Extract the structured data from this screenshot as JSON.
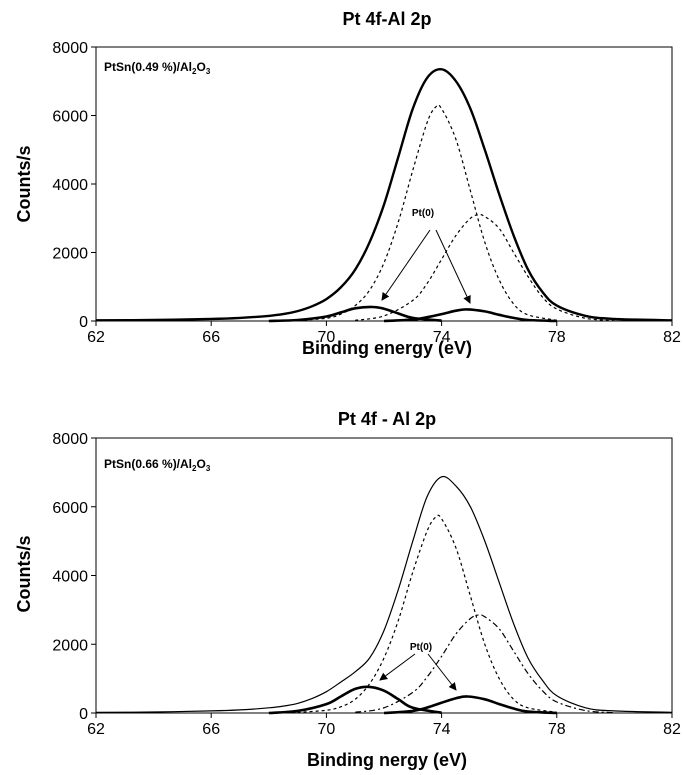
{
  "chart_data": [
    {
      "type": "line",
      "title": "Pt 4f-Al 2p",
      "xlabel": "Binding energy (eV)",
      "ylabel": "Counts/s",
      "sample_label": {
        "prefix": "PtSn(0.49 %)/Al",
        "sub1": "2",
        "mid": "O",
        "sub2": "3"
      },
      "annotation": "Pt(0)",
      "xlim": [
        62,
        82
      ],
      "ylim": [
        0,
        8000
      ],
      "xticks": [
        62,
        66,
        70,
        74,
        78,
        82
      ],
      "yticks": [
        0,
        2000,
        4000,
        6000,
        8000
      ],
      "grid": false,
      "series": [
        {
          "style": "envelope",
          "x": [
            62,
            64,
            66,
            67,
            68,
            68.5,
            69,
            69.5,
            70,
            70.5,
            71,
            71.5,
            72,
            72.5,
            73,
            73.5,
            74,
            74.5,
            75,
            75.5,
            76,
            76.5,
            77,
            77.5,
            78,
            79,
            80,
            82
          ],
          "y": [
            20,
            30,
            60,
            90,
            150,
            200,
            290,
            430,
            640,
            980,
            1500,
            2300,
            3400,
            4800,
            6200,
            7100,
            7350,
            7000,
            6200,
            5000,
            3700,
            2500,
            1500,
            850,
            450,
            150,
            60,
            20
          ]
        },
        {
          "style": "dotted-peak-1",
          "x": [
            69,
            70,
            70.5,
            71,
            71.5,
            72,
            72.5,
            73,
            73.5,
            73.8,
            74,
            74.5,
            75,
            75.5,
            76,
            76.5,
            77,
            78
          ],
          "y": [
            20,
            80,
            200,
            450,
            900,
            1700,
            2900,
            4400,
            5800,
            6250,
            6200,
            5300,
            3800,
            2300,
            1200,
            500,
            180,
            20
          ]
        },
        {
          "style": "dotted-peak-2",
          "x": [
            71,
            72,
            73,
            73.5,
            74,
            74.5,
            75,
            75.3,
            75.5,
            76,
            76.5,
            77,
            77.5,
            78,
            79,
            80
          ],
          "y": [
            20,
            150,
            600,
            1100,
            1800,
            2500,
            3000,
            3100,
            3050,
            2700,
            2000,
            1300,
            700,
            350,
            80,
            10
          ]
        },
        {
          "style": "pt0-peak-1",
          "x": [
            68,
            69,
            70,
            70.5,
            71,
            71.6,
            72,
            72.5,
            73,
            74
          ],
          "y": [
            0,
            30,
            130,
            250,
            370,
            410,
            360,
            220,
            90,
            10
          ]
        },
        {
          "style": "pt0-peak-2",
          "x": [
            72,
            73,
            73.5,
            74,
            74.5,
            74.9,
            75.5,
            76,
            76.5,
            77,
            78
          ],
          "y": [
            0,
            40,
            110,
            200,
            300,
            340,
            280,
            180,
            90,
            30,
            0
          ]
        }
      ]
    },
    {
      "type": "line",
      "title": "Pt 4f - Al 2p",
      "xlabel": "Binding nergy (eV)",
      "ylabel": "Counts/s",
      "sample_label": {
        "prefix": "PtSn(0.66 %)/Al",
        "sub1": "2",
        "mid": "O",
        "sub2": "3"
      },
      "annotation": "Pt(0)",
      "xlim": [
        62,
        82
      ],
      "ylim": [
        0,
        8000
      ],
      "xticks": [
        62,
        66,
        70,
        74,
        78,
        82
      ],
      "yticks": [
        0,
        2000,
        4000,
        6000,
        8000
      ],
      "grid": false,
      "series": [
        {
          "style": "envelope-thin",
          "x": [
            62,
            64,
            66,
            67,
            68,
            68.5,
            69,
            69.5,
            70,
            70.5,
            71,
            71.5,
            72,
            72.5,
            73,
            73.5,
            74,
            74.5,
            75,
            75.5,
            76,
            76.5,
            77,
            77.5,
            78,
            79,
            80,
            82
          ],
          "y": [
            20,
            30,
            60,
            90,
            150,
            200,
            280,
            420,
            620,
            900,
            1200,
            1600,
            2400,
            3600,
            5000,
            6300,
            6870,
            6600,
            6000,
            5000,
            3800,
            2600,
            1600,
            950,
            500,
            150,
            60,
            20
          ]
        },
        {
          "style": "dotted-peak-1",
          "x": [
            69,
            70,
            70.5,
            71,
            71.5,
            72,
            72.5,
            73,
            73.5,
            73.8,
            74,
            74.5,
            75,
            75.5,
            76,
            76.5,
            77,
            78
          ],
          "y": [
            20,
            80,
            180,
            400,
            850,
            1600,
            2700,
            4100,
            5300,
            5700,
            5650,
            4800,
            3400,
            2000,
            1000,
            400,
            150,
            20
          ]
        },
        {
          "style": "dashdot-peak-2",
          "x": [
            71,
            72,
            73,
            73.5,
            74,
            74.5,
            75,
            75.3,
            75.5,
            76,
            76.5,
            77,
            77.5,
            78,
            79,
            80
          ],
          "y": [
            20,
            150,
            600,
            1050,
            1650,
            2300,
            2750,
            2850,
            2800,
            2450,
            1800,
            1150,
            650,
            320,
            70,
            10
          ]
        },
        {
          "style": "pt0-peak-1",
          "x": [
            68,
            69,
            70,
            70.5,
            71,
            71.5,
            72,
            72.5,
            73,
            74
          ],
          "y": [
            0,
            60,
            260,
            480,
            700,
            760,
            650,
            400,
            150,
            10
          ]
        },
        {
          "style": "pt0-peak-2",
          "x": [
            72,
            73,
            73.5,
            74,
            74.5,
            74.9,
            75.5,
            76,
            76.5,
            77,
            78
          ],
          "y": [
            0,
            60,
            160,
            300,
            430,
            480,
            400,
            260,
            130,
            40,
            0
          ]
        }
      ]
    }
  ]
}
